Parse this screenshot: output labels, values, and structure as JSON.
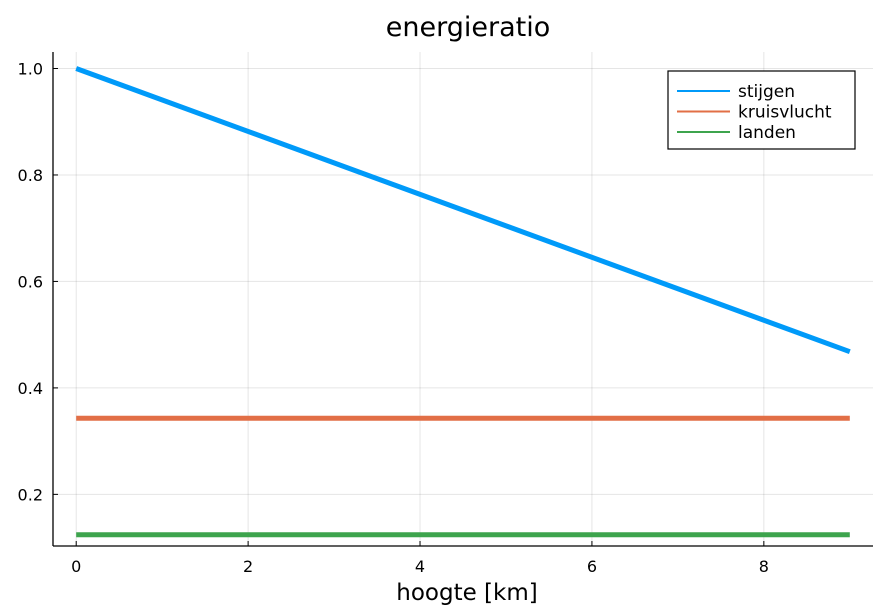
{
  "chart_data": {
    "type": "line",
    "title": "energieratio",
    "xlabel": "hoogte [km]",
    "ylabel": "",
    "xlim": [
      -0.27,
      9.27
    ],
    "ylim": [
      0.103,
      1.031
    ],
    "xticks": [
      0,
      2,
      4,
      6,
      8
    ],
    "yticks": [
      0.2,
      0.4,
      0.6,
      0.8,
      1.0
    ],
    "xtick_labels": [
      "0",
      "2",
      "4",
      "6",
      "8"
    ],
    "ytick_labels": [
      "0.2",
      "0.4",
      "0.6",
      "0.8",
      "1.0"
    ],
    "grid": true,
    "legend_position": "top-right",
    "series": [
      {
        "name": "stijgen",
        "color": "#009af9",
        "x": [
          0,
          9
        ],
        "y": [
          1.0,
          0.468
        ]
      },
      {
        "name": "kruisvlucht",
        "color": "#e26f46",
        "x": [
          0,
          9
        ],
        "y": [
          0.343,
          0.343
        ]
      },
      {
        "name": "landen",
        "color": "#3da44d",
        "x": [
          0,
          9
        ],
        "y": [
          0.124,
          0.124
        ]
      }
    ]
  }
}
